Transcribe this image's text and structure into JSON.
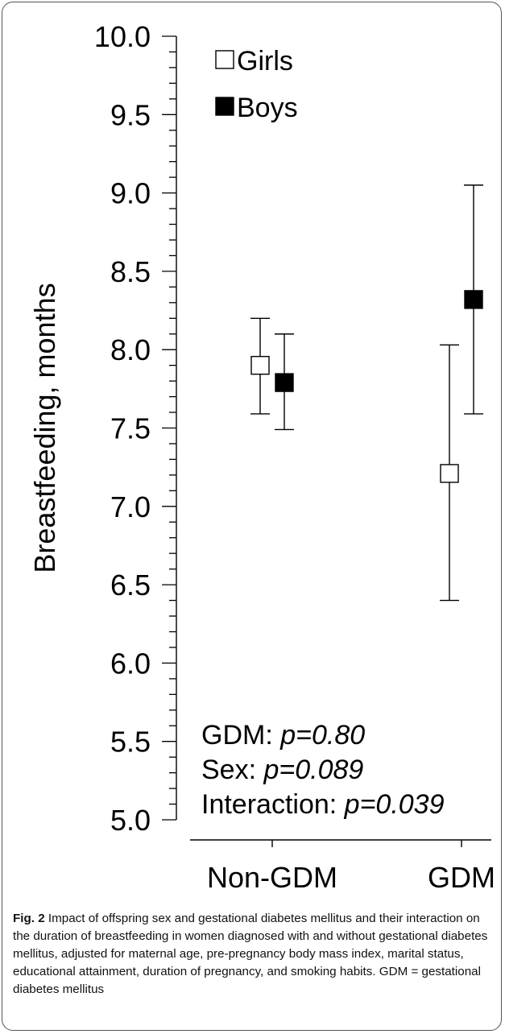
{
  "chart_data": {
    "type": "scatter",
    "ylabel": "Breastfeeding, months",
    "xlabel": "",
    "ylim": [
      5.0,
      10.0
    ],
    "y_ticks": [
      "5.0",
      "5.5",
      "6.0",
      "6.5",
      "7.0",
      "7.5",
      "8.0",
      "8.5",
      "9.0",
      "9.5",
      "10.0"
    ],
    "categories": [
      "Non-GDM",
      "GDM"
    ],
    "legend_position": "top-left",
    "grid": false,
    "series": [
      {
        "name": "Girls",
        "marker": "open-square",
        "color": "#000000",
        "values": [
          7.9,
          7.21
        ],
        "ci_low": [
          7.59,
          6.4
        ],
        "ci_high": [
          8.2,
          8.03
        ]
      },
      {
        "name": "Boys",
        "marker": "filled-square",
        "color": "#000000",
        "values": [
          7.79,
          8.32
        ],
        "ci_low": [
          7.49,
          7.59
        ],
        "ci_high": [
          8.1,
          9.05
        ]
      }
    ],
    "annotations": [
      {
        "label": "GDM: ",
        "p": "p=0.80"
      },
      {
        "label": "Sex: ",
        "p": "p=0.089"
      },
      {
        "label": "Interaction: ",
        "p": "p=0.039"
      }
    ]
  },
  "caption": {
    "label": "Fig. 2",
    "text": " Impact of offspring sex and gestational diabetes mellitus and their interaction on the duration of breastfeeding in women diagnosed with and without gestational diabetes mellitus, adjusted for maternal age, pre-pregnancy body mass index, marital status, educational attainment, duration of pregnancy, and smoking habits. GDM = gestational diabetes mellitus"
  }
}
